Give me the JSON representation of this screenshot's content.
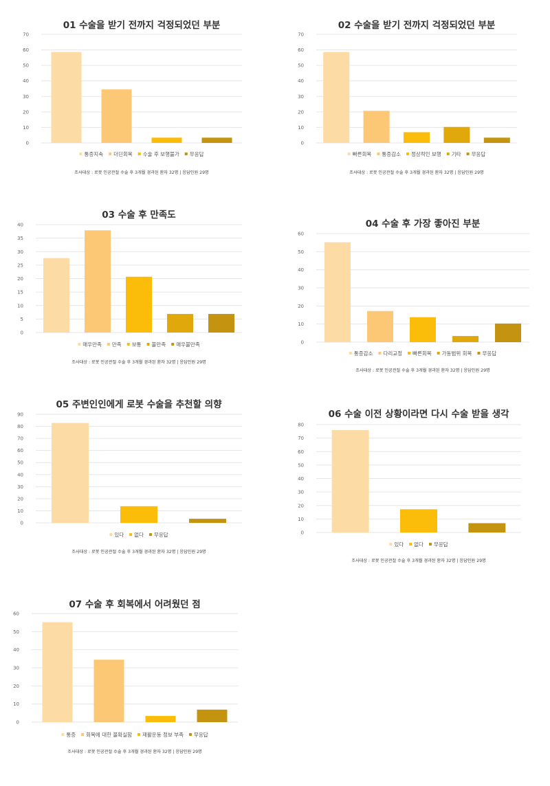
{
  "palette": [
    "#FDDBA5",
    "#FDC876",
    "#FBBD09",
    "#E0A80A",
    "#C49410"
  ],
  "chart_data": [
    {
      "type": "bar",
      "title": "01 수술을 받기 전까지 걱정되었던 부분",
      "categories": [
        "통증지속",
        "더딘회복",
        "수술 후 보행불가",
        "무응답"
      ],
      "values": [
        58.6,
        34.5,
        3.4,
        3.4
      ],
      "colors": [
        "#FDDBA5",
        "#FDC876",
        "#FBBD09",
        "#C49410"
      ],
      "ylim": [
        0,
        70
      ],
      "yticks": [
        0,
        10,
        20,
        30,
        40,
        50,
        60,
        70
      ],
      "grid": true,
      "legend": "bottom",
      "note": "조사대상 : 로봇 인공관절 수술 후 3개월 경과된 환자 32명 | 응답인원 29명"
    },
    {
      "type": "bar",
      "title": "02 수술을 받기 전까지 걱정되었던 부분",
      "categories": [
        "빠른회복",
        "통증감소",
        "정상적인 보행",
        "기타",
        "무응답"
      ],
      "values": [
        58.6,
        20.7,
        6.9,
        10.3,
        3.4
      ],
      "colors": [
        "#FDDBA5",
        "#FDC876",
        "#FBBD09",
        "#E0A80A",
        "#C49410"
      ],
      "ylim": [
        0,
        70
      ],
      "yticks": [
        0,
        10,
        20,
        30,
        40,
        50,
        60,
        70
      ],
      "grid": true,
      "legend": "bottom",
      "note": "조사대상 : 로봇 인공관절 수술 후 3개월 경과된 환자 32명 | 응답인원 29명"
    },
    {
      "type": "bar",
      "title": "03 수술 후 만족도",
      "categories": [
        "매우만족",
        "만족",
        "보통",
        "불만족",
        "매우불만족"
      ],
      "values": [
        27.6,
        37.9,
        20.7,
        6.9,
        6.9
      ],
      "colors": [
        "#FDDBA5",
        "#FDC876",
        "#FBBD09",
        "#E0A80A",
        "#C49410"
      ],
      "ylim": [
        0,
        40
      ],
      "yticks": [
        0,
        5,
        10,
        15,
        20,
        25,
        30,
        35,
        40
      ],
      "grid": true,
      "legend": "bottom",
      "note": "조사대상 : 로봇 인공관절 수술 후 3개월 경과된 환자 32명 | 응답인원 29명"
    },
    {
      "type": "bar",
      "title": "04 수술 후 가장 좋아진 부분",
      "categories": [
        "통증감소",
        "다리교정",
        "빠른회복",
        "가동범위 회복",
        "무응답"
      ],
      "values": [
        55.2,
        17.2,
        13.8,
        3.4,
        10.3
      ],
      "colors": [
        "#FDDBA5",
        "#FDC876",
        "#FBBD09",
        "#E0A80A",
        "#C49410"
      ],
      "ylim": [
        0,
        60
      ],
      "yticks": [
        0,
        10,
        20,
        30,
        40,
        50,
        60
      ],
      "grid": true,
      "legend": "bottom",
      "note": "조사대상 : 로봇 인공관절 수술 후 3개월 경과된 환자 32명 | 응답인원 29명"
    },
    {
      "type": "bar",
      "title": "05 주변인인에게 로봇 수술을 추천할 의향",
      "categories": [
        "있다",
        "없다",
        "무응답"
      ],
      "values": [
        82.8,
        13.8,
        3.4
      ],
      "colors": [
        "#FDDBA5",
        "#FBBD09",
        "#C49410"
      ],
      "ylim": [
        0,
        90
      ],
      "yticks": [
        0,
        10,
        20,
        30,
        40,
        50,
        60,
        70,
        80,
        90
      ],
      "grid": true,
      "legend": "bottom",
      "note": "조사대상 : 로봇 인공관절 수술 후 3개월 경과된 환자 32명 | 응답인원 29명"
    },
    {
      "type": "bar",
      "title": "06 수술 이전 상황이라면 다시 수술 받을 생각",
      "categories": [
        "있다",
        "없다",
        "무응답"
      ],
      "values": [
        75.9,
        17.2,
        6.9
      ],
      "colors": [
        "#FDDBA5",
        "#FBBD09",
        "#C49410"
      ],
      "ylim": [
        0,
        80
      ],
      "yticks": [
        0,
        10,
        20,
        30,
        40,
        50,
        60,
        70,
        80
      ],
      "grid": true,
      "legend": "bottom",
      "note": "조사대상 : 로봇 인공관절 수술 후 3개월 경과된 환자 32명 | 응답인원 29명"
    },
    {
      "type": "bar",
      "title": "07 수술 후 회복에서 어려웠던 점",
      "categories": [
        "통증",
        "회복에 대한 불확실함",
        "재활운동 정보 부족",
        "무응답"
      ],
      "values": [
        55.2,
        34.5,
        3.4,
        6.9
      ],
      "colors": [
        "#FDDBA5",
        "#FDC876",
        "#FBBD09",
        "#C49410"
      ],
      "ylim": [
        0,
        60
      ],
      "yticks": [
        0,
        10,
        20,
        30,
        40,
        50,
        60
      ],
      "grid": true,
      "legend": "bottom",
      "note": "조사대상 : 로봇 인공관절 수술 후 3개월 경과된 환자 32명 | 응답인원 29명"
    }
  ]
}
